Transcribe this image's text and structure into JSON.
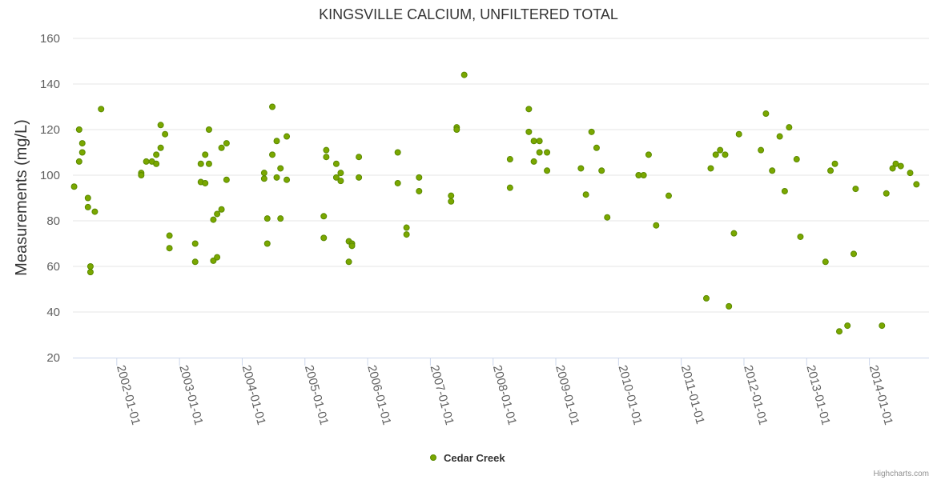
{
  "chart_data": {
    "type": "scatter",
    "title": "KINGSVILLE CALCIUM, UNFILTERED TOTAL",
    "ylabel": "Measurements (mg/L)",
    "xlabel": "",
    "ylim": [
      20,
      160
    ],
    "yticks": [
      20,
      40,
      60,
      80,
      100,
      120,
      140,
      160
    ],
    "xlim": [
      2001.3,
      2014.95
    ],
    "xticks": [
      {
        "value": 2002.0,
        "label": "2002-01-01"
      },
      {
        "value": 2003.0,
        "label": "2003-01-01"
      },
      {
        "value": 2004.0,
        "label": "2004-01-01"
      },
      {
        "value": 2005.0,
        "label": "2005-01-01"
      },
      {
        "value": 2006.0,
        "label": "2006-01-01"
      },
      {
        "value": 2007.0,
        "label": "2007-01-01"
      },
      {
        "value": 2008.0,
        "label": "2008-01-01"
      },
      {
        "value": 2009.0,
        "label": "2009-01-01"
      },
      {
        "value": 2010.0,
        "label": "2010-01-01"
      },
      {
        "value": 2011.0,
        "label": "2011-01-01"
      },
      {
        "value": 2012.0,
        "label": "2012-01-01"
      },
      {
        "value": 2013.0,
        "label": "2013-01-01"
      },
      {
        "value": 2014.0,
        "label": "2014-01-01"
      }
    ],
    "grid": true,
    "legend_position": "bottom-center",
    "series": [
      {
        "name": "Cedar Creek",
        "color": "#7aa700",
        "points": [
          [
            2001.32,
            95
          ],
          [
            2001.4,
            120
          ],
          [
            2001.4,
            106
          ],
          [
            2001.45,
            114
          ],
          [
            2001.45,
            110
          ],
          [
            2001.54,
            90
          ],
          [
            2001.54,
            86
          ],
          [
            2001.58,
            60
          ],
          [
            2001.58,
            57.5
          ],
          [
            2001.65,
            84
          ],
          [
            2001.75,
            129
          ],
          [
            2002.39,
            101
          ],
          [
            2002.39,
            100
          ],
          [
            2002.47,
            106
          ],
          [
            2002.56,
            106
          ],
          [
            2002.63,
            109
          ],
          [
            2002.63,
            105
          ],
          [
            2002.7,
            122
          ],
          [
            2002.7,
            112
          ],
          [
            2002.77,
            118
          ],
          [
            2002.84,
            73.5
          ],
          [
            2002.84,
            68
          ],
          [
            2003.25,
            70
          ],
          [
            2003.25,
            62
          ],
          [
            2003.34,
            105
          ],
          [
            2003.34,
            97
          ],
          [
            2003.41,
            109
          ],
          [
            2003.41,
            96.5
          ],
          [
            2003.47,
            120
          ],
          [
            2003.47,
            105
          ],
          [
            2003.54,
            80.5
          ],
          [
            2003.54,
            62.5
          ],
          [
            2003.6,
            83
          ],
          [
            2003.6,
            64
          ],
          [
            2003.67,
            112
          ],
          [
            2003.67,
            85
          ],
          [
            2003.75,
            114
          ],
          [
            2003.75,
            98
          ],
          [
            2004.35,
            101
          ],
          [
            2004.35,
            98.5
          ],
          [
            2004.4,
            81
          ],
          [
            2004.4,
            70
          ],
          [
            2004.48,
            130
          ],
          [
            2004.48,
            109
          ],
          [
            2004.55,
            115
          ],
          [
            2004.55,
            99
          ],
          [
            2004.61,
            103
          ],
          [
            2004.61,
            81
          ],
          [
            2004.71,
            117
          ],
          [
            2004.71,
            98
          ],
          [
            2005.3,
            82
          ],
          [
            2005.3,
            72.5
          ],
          [
            2005.34,
            111
          ],
          [
            2005.34,
            108
          ],
          [
            2005.5,
            105
          ],
          [
            2005.5,
            99
          ],
          [
            2005.57,
            101
          ],
          [
            2005.57,
            97.5
          ],
          [
            2005.7,
            71
          ],
          [
            2005.7,
            62
          ],
          [
            2005.75,
            70
          ],
          [
            2005.75,
            69
          ],
          [
            2005.86,
            108
          ],
          [
            2005.86,
            99
          ],
          [
            2006.48,
            110
          ],
          [
            2006.48,
            96.5
          ],
          [
            2006.62,
            77
          ],
          [
            2006.62,
            74
          ],
          [
            2006.82,
            99
          ],
          [
            2006.82,
            93
          ],
          [
            2007.33,
            91
          ],
          [
            2007.33,
            88.5
          ],
          [
            2007.42,
            121
          ],
          [
            2007.42,
            120
          ],
          [
            2007.54,
            144
          ],
          [
            2008.27,
            107
          ],
          [
            2008.27,
            94.5
          ],
          [
            2008.57,
            129
          ],
          [
            2008.57,
            119
          ],
          [
            2008.65,
            115
          ],
          [
            2008.65,
            106
          ],
          [
            2008.74,
            115
          ],
          [
            2008.74,
            110
          ],
          [
            2008.86,
            110
          ],
          [
            2008.86,
            102
          ],
          [
            2009.4,
            103
          ],
          [
            2009.48,
            91.5
          ],
          [
            2009.57,
            119
          ],
          [
            2009.65,
            112
          ],
          [
            2009.73,
            102
          ],
          [
            2009.82,
            81.5
          ],
          [
            2010.32,
            100
          ],
          [
            2010.4,
            100
          ],
          [
            2010.48,
            109
          ],
          [
            2010.6,
            78
          ],
          [
            2010.8,
            91
          ],
          [
            2011.4,
            46
          ],
          [
            2011.47,
            103
          ],
          [
            2011.55,
            109
          ],
          [
            2011.62,
            111
          ],
          [
            2011.7,
            109
          ],
          [
            2011.76,
            42.5
          ],
          [
            2011.84,
            74.5
          ],
          [
            2011.92,
            118
          ],
          [
            2012.27,
            111
          ],
          [
            2012.35,
            127
          ],
          [
            2012.45,
            102
          ],
          [
            2012.57,
            117
          ],
          [
            2012.65,
            93
          ],
          [
            2012.72,
            121
          ],
          [
            2012.84,
            107
          ],
          [
            2012.9,
            73
          ],
          [
            2013.3,
            62
          ],
          [
            2013.38,
            102
          ],
          [
            2013.45,
            105
          ],
          [
            2013.52,
            31.5
          ],
          [
            2013.65,
            34
          ],
          [
            2013.75,
            65.5
          ],
          [
            2013.78,
            94
          ],
          [
            2014.2,
            34
          ],
          [
            2014.27,
            92
          ],
          [
            2014.37,
            103
          ],
          [
            2014.42,
            105
          ],
          [
            2014.5,
            104
          ],
          [
            2014.65,
            101
          ],
          [
            2014.75,
            96
          ]
        ]
      }
    ],
    "credit": "Highcharts.com"
  }
}
